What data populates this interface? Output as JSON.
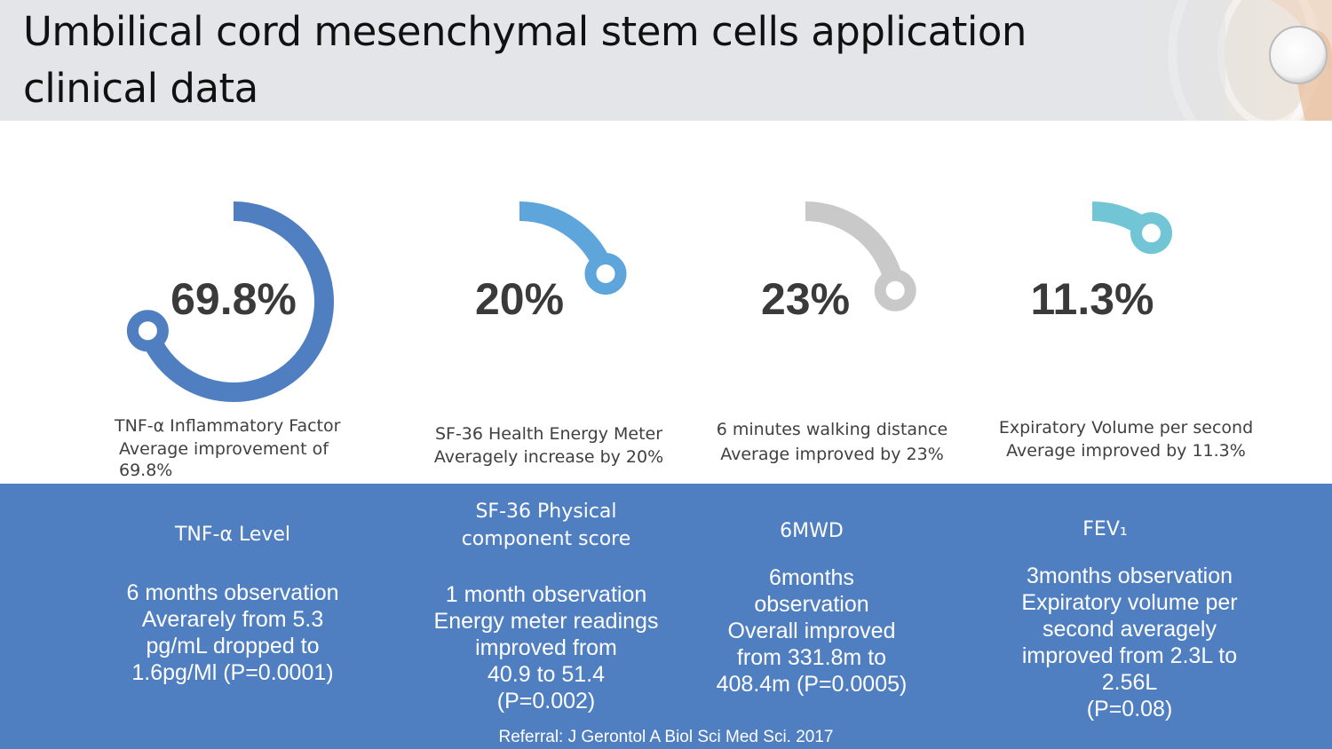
{
  "header": {
    "title_line1": "Umbilical cord mesenchymal stem cells application",
    "title_line2": "clinical data",
    "decorative_image": "doctor-with-stethoscope-photo"
  },
  "chart_data": {
    "type": "radial-gauge",
    "title": "Umbilical cord mesenchymal stem cells application clinical data",
    "range": [
      0,
      100
    ],
    "start_angle": "12 o'clock",
    "direction": "clockwise",
    "gauges": [
      {
        "value": 69.8,
        "label": "69.8%",
        "color": "#4f7fc1",
        "caption_lines": [
          "TNF-α Inflammatory Factor",
          "Average improvement of",
          "69.8%"
        ]
      },
      {
        "value": 20,
        "label": "20%",
        "color": "#5ea5dc",
        "caption_lines": [
          "SF-36 Health Energy Meter",
          "Averagely increase by 20%"
        ]
      },
      {
        "value": 23,
        "label": "23%",
        "color": "#c9c9c9",
        "caption_lines": [
          "6 minutes walking distance",
          "Average improved by 23%"
        ]
      },
      {
        "value": 11.3,
        "label": "11.3%",
        "color": "#72c5d4",
        "caption_lines": [
          "Expiratory Volume per second",
          "Average improved by 11.3%"
        ]
      }
    ]
  },
  "band": {
    "background": "#4f7fc1",
    "columns": [
      {
        "heading": "TNF-α Level",
        "body": "6 months observation\nAverагely from 5.3\npg/mL  dropped to\n1.6pg/Ml  (P=0.0001)"
      },
      {
        "heading": "SF-36 Physical\ncomponent score",
        "body": "1 month observation\nEnergy meter readings\nimproved from\n40.9 to 51.4\n(P=0.002)"
      },
      {
        "heading": "6MWD",
        "body": "6months\nobservation\nOverall improved\nfrom  331.8m to\n408.4m  (P=0.0005)"
      },
      {
        "heading": "FEV₁",
        "body": "3months observation\n Expiratory volume per\nsecond averagely\nimproved from 2.3L to\n2.56L\n(P=0.08)"
      }
    ],
    "referral": "Referral: J Gerontol A Biol Sci Med Sci. 2017"
  }
}
